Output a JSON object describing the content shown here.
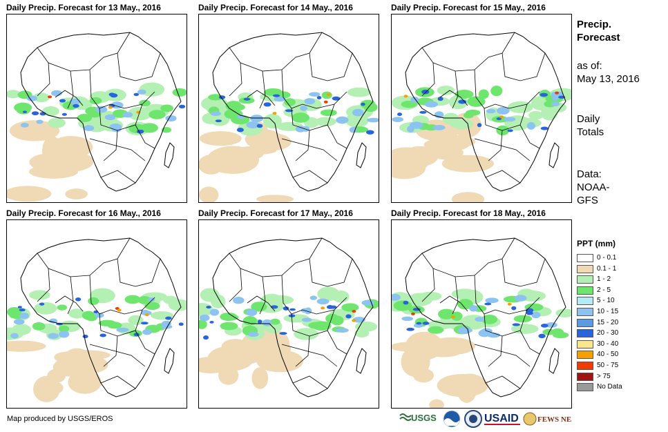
{
  "panels": [
    {
      "title": "Daily Precip. Forecast for 13 May., 2016"
    },
    {
      "title": "Daily Precip. Forecast for 14 May., 2016"
    },
    {
      "title": "Daily Precip. Forecast for 15 May., 2016"
    },
    {
      "title": "Daily Precip. Forecast for 16 May., 2016"
    },
    {
      "title": "Daily Precip. Forecast for 17 May., 2016"
    },
    {
      "title": "Daily Precip. Forecast for 18 May., 2016"
    }
  ],
  "sidebar": {
    "heading_line1": "Precip.",
    "heading_line2": "Forecast",
    "asof_label": "as of:",
    "asof_date": "May 13, 2016",
    "totals_line1": "Daily",
    "totals_line2": "Totals",
    "data_line1": "Data:",
    "data_line2": "NOAA-",
    "data_line3": "GFS"
  },
  "legend": {
    "title": "PPT (mm)",
    "items": [
      {
        "label": "0 - 0.1",
        "color": "#ffffff"
      },
      {
        "label": "0.1 - 1",
        "color": "#f0d9b5"
      },
      {
        "label": "1 - 2",
        "color": "#b4f0b4"
      },
      {
        "label": "2 - 5",
        "color": "#6ee66e"
      },
      {
        "label": "5 - 10",
        "color": "#b4ecf5"
      },
      {
        "label": "10 - 15",
        "color": "#8cc3f0"
      },
      {
        "label": "15 - 20",
        "color": "#5a9be6"
      },
      {
        "label": "20 - 30",
        "color": "#2864dc"
      },
      {
        "label": "30 - 40",
        "color": "#fae68c"
      },
      {
        "label": "40 - 50",
        "color": "#f5a000"
      },
      {
        "label": "50 - 75",
        "color": "#f03c00"
      },
      {
        "label": "> 75",
        "color": "#a01414"
      },
      {
        "label": "No Data",
        "color": "#999999"
      }
    ]
  },
  "footer": {
    "credit": "Map produced by USGS/EROS",
    "logos": [
      "USGS",
      "NOAA",
      "USAID",
      "FEWS NET"
    ]
  }
}
